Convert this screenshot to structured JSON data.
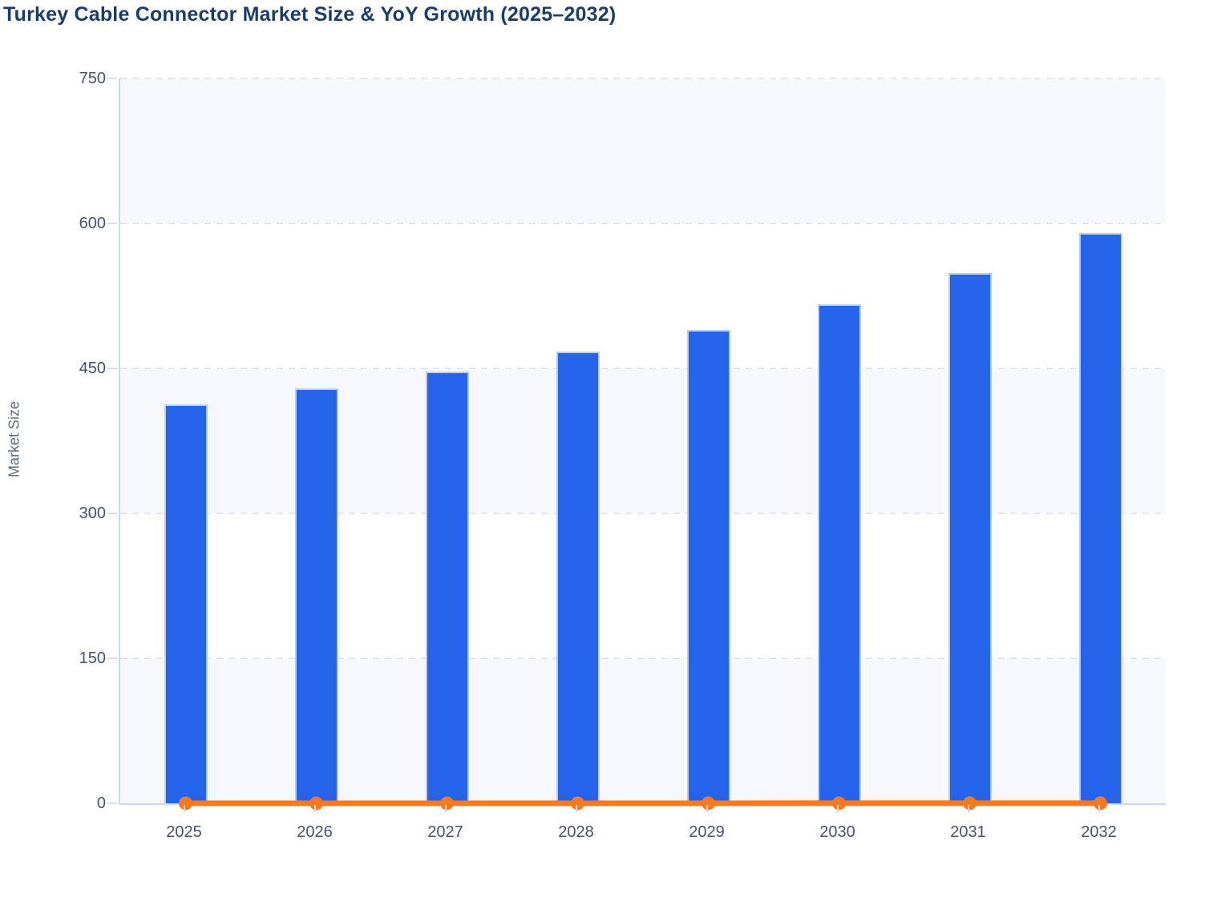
{
  "title": {
    "text": "Turkey Cable Connector Market Size & YoY Growth (2025–2032)",
    "color": "#1d3c66"
  },
  "axes": {
    "y_axis_title": "Market Size",
    "y_tick_labels": [
      "0",
      "150",
      "300",
      "450",
      "600",
      "750"
    ],
    "x_tick_labels": [
      "2025",
      "2026",
      "2027",
      "2028",
      "2029",
      "2030",
      "2031",
      "2032"
    ]
  },
  "chart_data": {
    "type": "bar",
    "title": "Turkey Cable Connector Market Size & YoY Growth (2025–2032)",
    "categories": [
      "2025",
      "2026",
      "2027",
      "2028",
      "2029",
      "2030",
      "2031",
      "2032"
    ],
    "series": [
      {
        "name": "Market Size",
        "type": "bar",
        "color": "#2563eb",
        "values": [
          413,
          429,
          447,
          467,
          490,
          516,
          549,
          590
        ]
      },
      {
        "name": "YoY Growth",
        "type": "line",
        "color": "#f5791d",
        "values": [
          0.04,
          0.039,
          0.042,
          0.045,
          0.049,
          0.053,
          0.064,
          0.075
        ]
      }
    ],
    "xlabel": "",
    "ylabel": "Market Size",
    "ylim": [
      0,
      750
    ],
    "yticks": [
      0,
      150,
      300,
      450,
      600,
      750
    ],
    "grid": "horizontal-dashed",
    "legend": "none",
    "plot_background": "alternating horizontal bands"
  },
  "colors": {
    "bar_fill": "#2563eb",
    "bar_stroke": "#b9cbf5",
    "line_orange": "#f5791d",
    "band": "#f7f8fb",
    "band_alt": "#ffffff",
    "gridline": "#e3e5ea",
    "axis_line": "#ccd8f0",
    "tick_text": "#47526b",
    "axis_title_text": "#5c6a80",
    "title_text": "#1d3c66"
  }
}
